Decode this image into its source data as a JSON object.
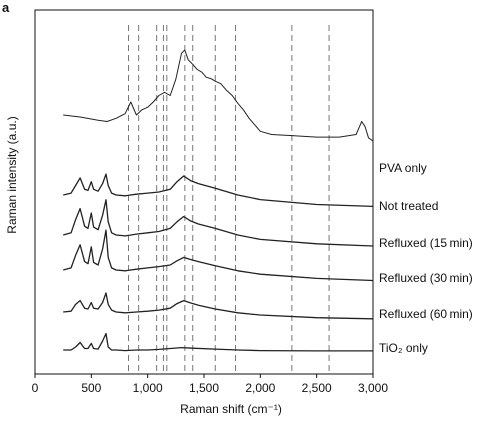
{
  "figure": {
    "panel_label": "a"
  },
  "chart_data": {
    "type": "line",
    "xlabel": "Raman shift (cm⁻¹)",
    "ylabel": "Raman intensity (a.u.)",
    "xlim": [
      0,
      3000
    ],
    "x_ticks": [
      0,
      500,
      1000,
      1500,
      2000,
      2500,
      3000
    ],
    "x_tick_labels": [
      "0",
      "500",
      "1,000",
      "1,500",
      "2,000",
      "2,500",
      "3,000"
    ],
    "y_ticks": "none",
    "grid": false,
    "legend": "labels at right end of each trace",
    "reference_lines": {
      "style": "dashed vertical",
      "x": [
        830,
        920,
        1080,
        1140,
        1170,
        1330,
        1400,
        1600,
        1780,
        2280,
        2610
      ]
    },
    "series": [
      {
        "name": "PVA only",
        "x": [
          250,
          400,
          560,
          640,
          720,
          800,
          850,
          900,
          950,
          1000,
          1050,
          1100,
          1150,
          1200,
          1250,
          1300,
          1330,
          1360,
          1400,
          1440,
          1480,
          1520,
          1560,
          1600,
          1650,
          1700,
          1750,
          1800,
          1850,
          1900,
          1950,
          2000,
          2100,
          2300,
          2500,
          2700,
          2850,
          2900,
          2930,
          2960,
          3000
        ],
        "y": [
          0.0,
          -0.03,
          -0.08,
          -0.1,
          -0.05,
          0.02,
          0.2,
          0.0,
          0.08,
          0.12,
          0.2,
          0.3,
          0.35,
          0.3,
          0.55,
          0.95,
          1.0,
          0.85,
          0.78,
          0.7,
          0.66,
          0.58,
          0.56,
          0.52,
          0.48,
          0.38,
          0.3,
          0.18,
          0.08,
          -0.05,
          -0.15,
          -0.25,
          -0.3,
          -0.32,
          -0.34,
          -0.34,
          -0.3,
          -0.1,
          -0.18,
          -0.35,
          -0.4
        ]
      },
      {
        "name": "Not treated",
        "x": [
          250,
          320,
          360,
          400,
          440,
          470,
          500,
          520,
          560,
          600,
          630,
          650,
          680,
          720,
          800,
          900,
          1000,
          1100,
          1200,
          1260,
          1320,
          1380,
          1450,
          1600,
          1800,
          2000,
          2500,
          3000
        ],
        "y": [
          0.0,
          0.05,
          0.25,
          0.45,
          0.15,
          0.12,
          0.35,
          0.15,
          0.1,
          0.3,
          0.55,
          0.25,
          0.05,
          0.0,
          -0.02,
          0.02,
          0.05,
          0.08,
          0.15,
          0.35,
          0.5,
          0.38,
          0.3,
          0.18,
          0.0,
          -0.12,
          -0.25,
          -0.3
        ]
      },
      {
        "name": "Refluxed (15 min)",
        "x": [
          250,
          320,
          360,
          400,
          440,
          470,
          500,
          520,
          560,
          600,
          630,
          650,
          680,
          720,
          800,
          900,
          1000,
          1100,
          1200,
          1260,
          1320,
          1380,
          1450,
          1600,
          1800,
          2000,
          2500,
          3000
        ],
        "y": [
          0.0,
          0.05,
          0.35,
          0.6,
          0.2,
          0.15,
          0.5,
          0.18,
          0.12,
          0.45,
          0.8,
          0.3,
          0.05,
          0.0,
          -0.02,
          0.02,
          0.05,
          0.08,
          0.15,
          0.3,
          0.42,
          0.32,
          0.25,
          0.15,
          0.0,
          -0.1,
          -0.2,
          -0.25
        ]
      },
      {
        "name": "Refluxed (30 min)",
        "x": [
          250,
          320,
          360,
          400,
          440,
          470,
          500,
          520,
          560,
          600,
          630,
          650,
          680,
          720,
          800,
          900,
          1000,
          1100,
          1200,
          1260,
          1320,
          1380,
          1450,
          1600,
          1800,
          2000,
          2500,
          3000
        ],
        "y": [
          0.0,
          0.05,
          0.35,
          0.6,
          0.2,
          0.15,
          0.55,
          0.18,
          0.12,
          0.5,
          0.95,
          0.3,
          0.05,
          0.0,
          -0.02,
          0.02,
          0.05,
          0.08,
          0.12,
          0.22,
          0.3,
          0.25,
          0.2,
          0.1,
          -0.02,
          -0.1,
          -0.2,
          -0.25
        ]
      },
      {
        "name": "Refluxed (60 min)",
        "x": [
          250,
          320,
          360,
          400,
          440,
          470,
          500,
          520,
          560,
          600,
          630,
          650,
          680,
          720,
          800,
          900,
          1000,
          1100,
          1200,
          1260,
          1320,
          1380,
          1450,
          1600,
          1800,
          2000,
          2500,
          3000
        ],
        "y": [
          0.0,
          0.02,
          0.2,
          0.3,
          0.1,
          0.08,
          0.25,
          0.1,
          0.08,
          0.25,
          0.5,
          0.2,
          0.05,
          0.0,
          -0.02,
          0.0,
          0.02,
          0.05,
          0.1,
          0.22,
          0.3,
          0.24,
          0.18,
          0.08,
          -0.02,
          -0.08,
          -0.15,
          -0.18
        ]
      },
      {
        "name": "TiO₂ only",
        "x": [
          250,
          320,
          360,
          400,
          440,
          470,
          500,
          520,
          560,
          600,
          630,
          650,
          680,
          720,
          800,
          900,
          1000,
          1100,
          1200,
          1300,
          1400,
          1600,
          1800,
          2000,
          2500,
          3000
        ],
        "y": [
          0.0,
          0.0,
          0.1,
          0.25,
          0.05,
          0.05,
          0.22,
          0.05,
          0.03,
          0.3,
          0.55,
          0.1,
          0.0,
          0.0,
          -0.02,
          0.0,
          0.0,
          0.02,
          0.05,
          0.08,
          0.06,
          0.03,
          0.0,
          -0.02,
          -0.03,
          -0.03
        ]
      }
    ],
    "series_labels": [
      "PVA only",
      "Not treated",
      "Refluxed (15 min)",
      "Refluxed (30 min)",
      "Refluxed (60 min)",
      "TiO₂ only"
    ]
  }
}
